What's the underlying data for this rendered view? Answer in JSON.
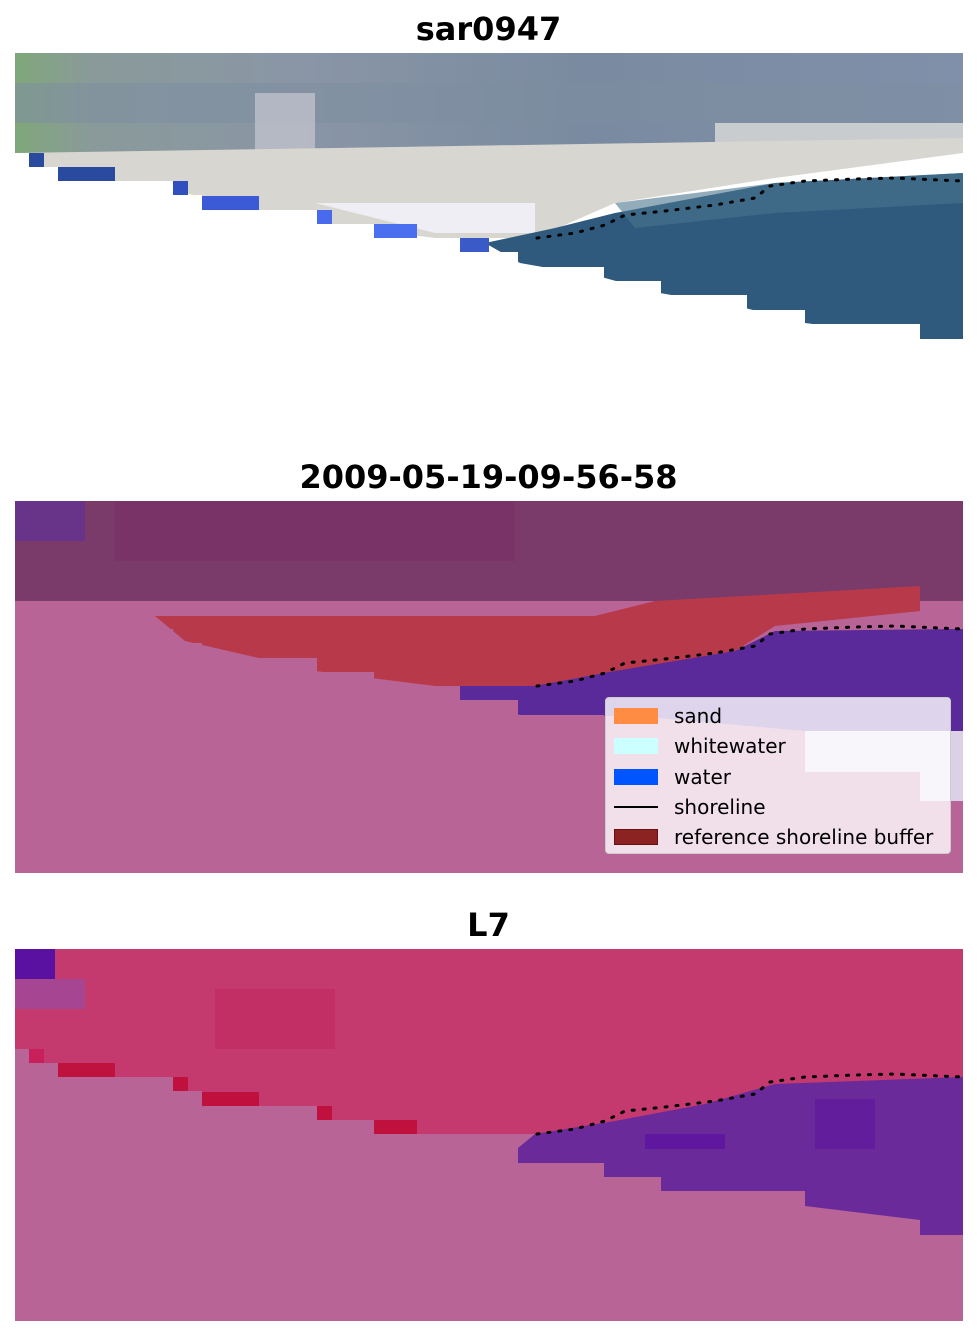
{
  "panels": [
    {
      "title": "sar0947"
    },
    {
      "title": "2009-05-19-09-56-58"
    },
    {
      "title": "L7"
    }
  ],
  "legend": {
    "items": [
      {
        "label": "sand",
        "color": "#ff8c42",
        "kind": "patch"
      },
      {
        "label": "whitewater",
        "color": "#ccffff",
        "kind": "patch"
      },
      {
        "label": "water",
        "color": "#0055ff",
        "kind": "patch"
      },
      {
        "label": "shoreline",
        "color": "#000000",
        "kind": "line"
      },
      {
        "label": "reference shoreline buffer",
        "color": "#8b2323",
        "kind": "patch"
      }
    ]
  },
  "colors": {
    "rgb_sky_green": "#7fa77a",
    "rgb_sand_bright": "#e8e6e2",
    "rgb_water": "#2f5a7d",
    "class_land": "#7a3a6a",
    "class_sand_buffer": "#b83a4a",
    "class_water": "#5a2a9a",
    "nodata_magenta": "#b86496",
    "mndwi_land": "#c43a6e",
    "mndwi_water": "#6a2a9a",
    "shoreline": "#000000"
  }
}
